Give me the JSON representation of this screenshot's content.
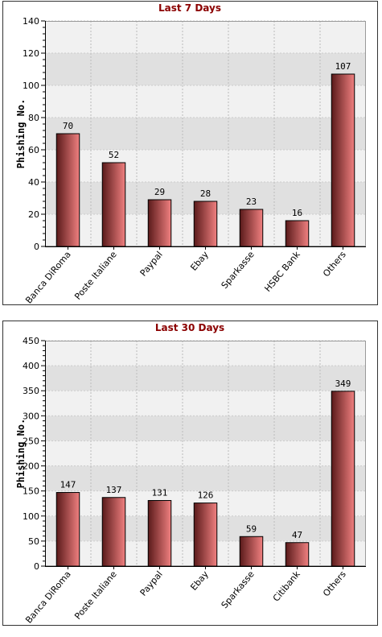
{
  "colors": {
    "title": "#8b0000",
    "bar_dark": "#5a1a1a",
    "bar_light": "#f08080",
    "band_light": "#f1f1f1",
    "band_dark": "#e0e0e0",
    "frame": "#333333"
  },
  "chart_data": [
    {
      "type": "bar",
      "title": "Last 7 Days",
      "ylabel": "Phishing No.",
      "xlabel": "",
      "categories": [
        "Banca DiRoma",
        "Poste Italiane",
        "Paypal",
        "Ebay",
        "Sparkasse",
        "HSBC Bank",
        "Others"
      ],
      "values": [
        70,
        52,
        29,
        28,
        23,
        16,
        107
      ],
      "ylim": [
        0,
        140
      ],
      "yticks": [
        0,
        20,
        40,
        60,
        80,
        100,
        120,
        140
      ],
      "grid": true
    },
    {
      "type": "bar",
      "title": "Last 30 Days",
      "ylabel": "Phishing No.",
      "xlabel": "",
      "categories": [
        "Banca DiRoma",
        "Poste Italiane",
        "Paypal",
        "Ebay",
        "Sparkasse",
        "Citibank",
        "Others"
      ],
      "values": [
        147,
        137,
        131,
        126,
        59,
        47,
        349
      ],
      "ylim": [
        0,
        450
      ],
      "yticks": [
        0,
        50,
        100,
        150,
        200,
        250,
        300,
        350,
        400,
        450
      ],
      "grid": true
    }
  ]
}
